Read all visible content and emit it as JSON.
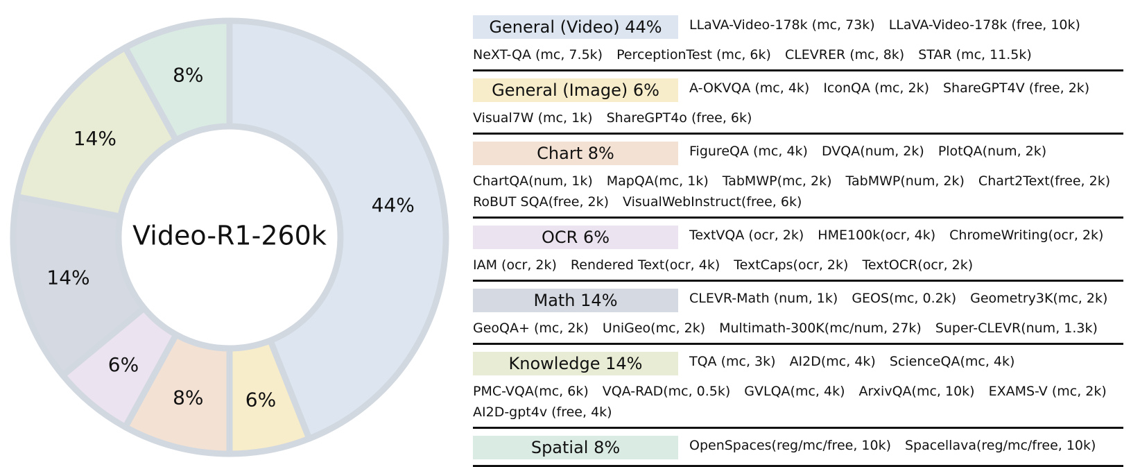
{
  "chart_data": {
    "type": "pie",
    "style": "donut",
    "center_label": "Video-R1-260k",
    "slices": [
      {
        "label": "General (Video)",
        "value": 44,
        "text": "44%",
        "color": "#dde6f0"
      },
      {
        "label": "General (Image)",
        "value": 6,
        "text": "6%",
        "color": "#f7edca"
      },
      {
        "label": "Chart",
        "value": 8,
        "text": "8%",
        "color": "#f3e1d3"
      },
      {
        "label": "OCR",
        "value": 6,
        "text": "6%",
        "color": "#ece3f0"
      },
      {
        "label": "Math",
        "value": 14,
        "text": "14%",
        "color": "#d5d9e2"
      },
      {
        "label": "Knowledge",
        "value": 14,
        "text": "14%",
        "color": "#e9ecd4"
      },
      {
        "label": "Spatial",
        "value": 8,
        "text": "8%",
        "color": "#d9ebe3"
      }
    ],
    "border_color": "#d2d8e0"
  },
  "groups": [
    {
      "title": "General (Video) 44%",
      "color": "#dde6f0",
      "lines": [
        [
          "LLaVA-Video-178k (mc, 73k)",
          "LLaVA-Video-178k (free, 10k)"
        ],
        [
          "NeXT-QA (mc, 7.5k)",
          "PerceptionTest (mc, 6k)",
          "CLEVRER (mc, 8k)",
          "STAR (mc, 11.5k)"
        ]
      ]
    },
    {
      "title": "General (Image) 6%",
      "color": "#f7edca",
      "lines": [
        [
          "A-OKVQA (mc, 4k)",
          "IconQA (mc, 2k)",
          "ShareGPT4V (free, 2k)"
        ],
        [
          "Visual7W (mc, 1k)",
          "ShareGPT4o (free, 6k)"
        ]
      ]
    },
    {
      "title": "Chart 8%",
      "color": "#f3e1d3",
      "lines": [
        [
          "FigureQA (mc, 4k)",
          "DVQA(num, 2k)",
          "PlotQA(num, 2k)"
        ],
        [
          "ChartQA(num, 1k)",
          "MapQA(mc, 1k)",
          "TabMWP(mc, 2k)",
          "TabMWP(num, 2k)",
          "Chart2Text(free, 2k)"
        ],
        [
          "RoBUT SQA(free, 2k)",
          "VisualWebInstruct(free, 6k)"
        ]
      ]
    },
    {
      "title": "OCR 6%",
      "color": "#ece3f0",
      "lines": [
        [
          "TextVQA (ocr, 2k)",
          "HME100k(ocr, 4k)",
          "ChromeWriting(ocr, 2k)"
        ],
        [
          "IAM (ocr, 2k)",
          "Rendered Text(ocr, 4k)",
          "TextCaps(ocr, 2k)",
          "TextOCR(ocr, 2k)"
        ]
      ]
    },
    {
      "title": "Math 14%",
      "color": "#d5d9e2",
      "lines": [
        [
          "CLEVR-Math (num, 1k)",
          "GEOS(mc, 0.2k)",
          "Geometry3K(mc, 2k)"
        ],
        [
          "GeoQA+ (mc, 2k)",
          "UniGeo(mc, 2k)",
          "Multimath-300K(mc/num, 27k)",
          "Super-CLEVR(num, 1.3k)"
        ]
      ]
    },
    {
      "title": "Knowledge 14%",
      "color": "#e9ecd4",
      "lines": [
        [
          "TQA (mc, 3k)",
          "AI2D(mc, 4k)",
          "ScienceQA(mc, 4k)"
        ],
        [
          "PMC-VQA(mc, 6k)",
          "VQA-RAD(mc, 0.5k)",
          "GVLQA(mc, 4k)",
          "ArxivQA(mc, 10k)",
          "EXAMS-V (mc, 2k)"
        ],
        [
          "AI2D-gpt4v (free, 4k)"
        ]
      ]
    },
    {
      "title": "Spatial 8%",
      "color": "#d9ebe3",
      "lines": [
        [
          "OpenSpaces(reg/mc/free, 10k)",
          "Spacellava(reg/mc/free, 10k)"
        ]
      ]
    }
  ]
}
